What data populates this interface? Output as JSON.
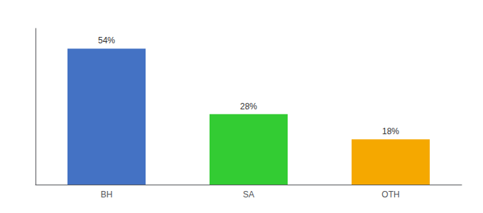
{
  "chart_data": {
    "type": "bar",
    "categories": [
      "BH",
      "SA",
      "OTH"
    ],
    "values": [
      54,
      28,
      18
    ],
    "value_labels": [
      "54%",
      "28%",
      "18%"
    ],
    "data_labels": true,
    "colors": [
      "#4472c4",
      "#33cc33",
      "#f5a800"
    ],
    "ylim": [
      0,
      62
    ],
    "tick_labels": "x",
    "grid": false
  }
}
